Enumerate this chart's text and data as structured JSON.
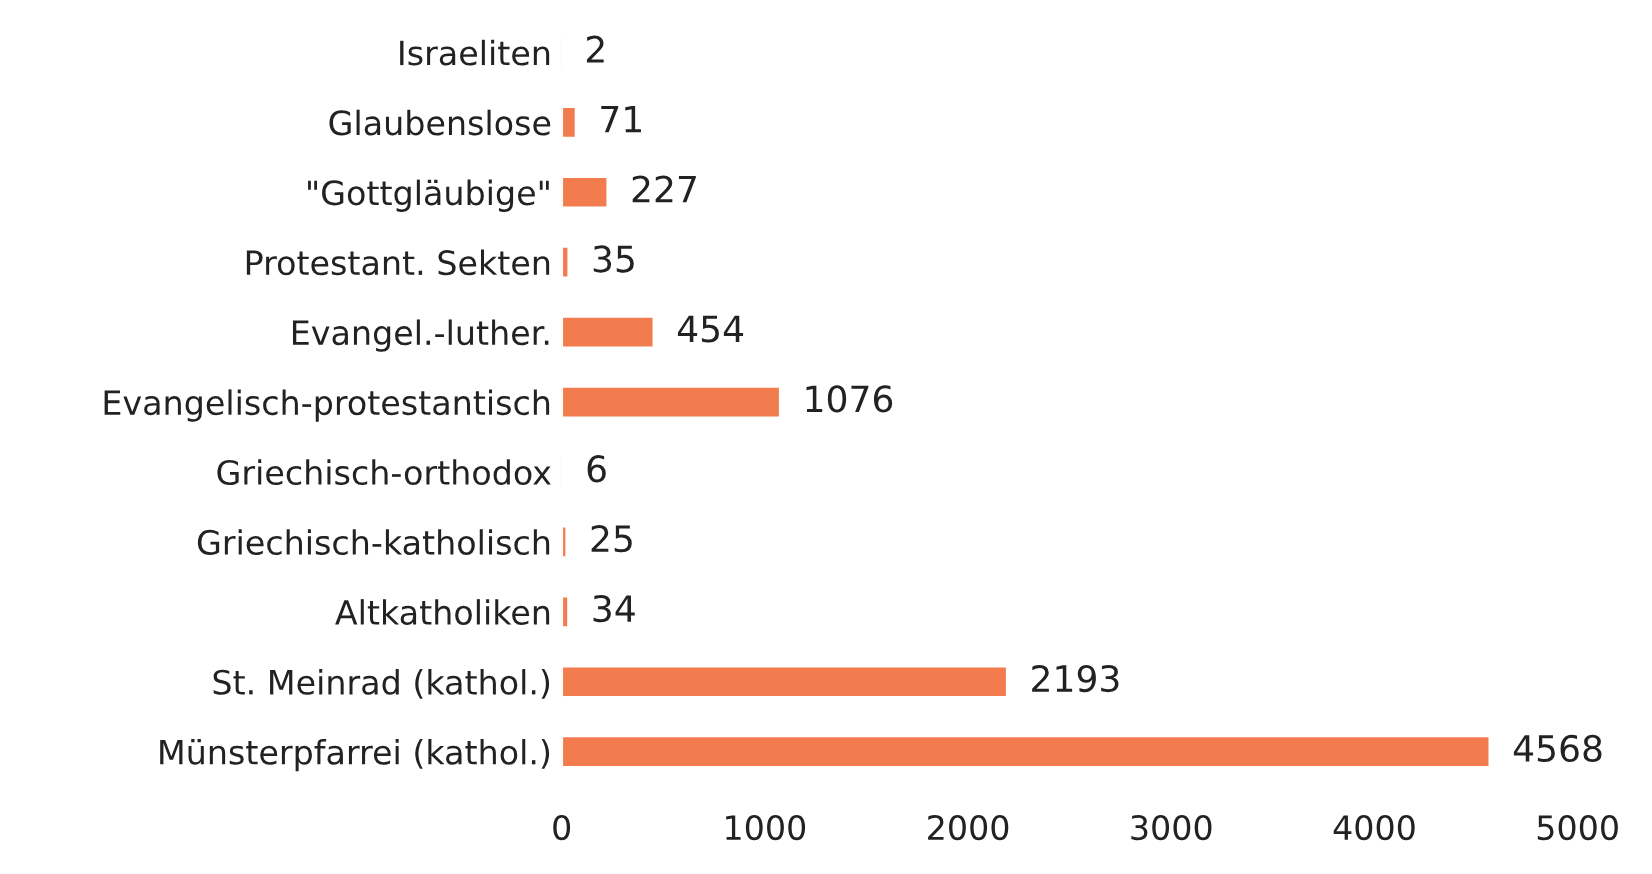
{
  "chart_data": {
    "type": "bar",
    "orientation": "horizontal",
    "categories": [
      "Israeliten",
      "Glaubenslose",
      "\"Gottgläubige\"",
      "Protestant. Sekten",
      "Evangel.-luther.",
      "Evangelisch-protestantisch",
      "Griechisch-orthodox",
      "Griechisch-katholisch",
      "Altkatholiken",
      "St. Meinrad (kathol.)",
      "Münsterpfarrei (kathol.)"
    ],
    "values": [
      2,
      71,
      227,
      35,
      454,
      1076,
      6,
      25,
      34,
      2193,
      4568
    ],
    "color": "#f27c4e",
    "xlim": [
      0,
      5000
    ],
    "xticks": [
      0,
      1000,
      2000,
      3000,
      4000,
      5000
    ],
    "data_labels": true,
    "grid": false
  }
}
